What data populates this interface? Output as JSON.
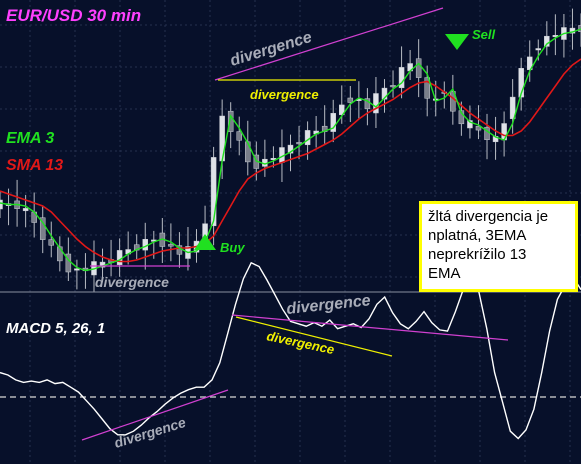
{
  "title": "EUR/USD  30 min",
  "indicators": {
    "ema": "EMA 3",
    "sma": "SMA 13",
    "macd": "MACD  5, 26, 1"
  },
  "colors": {
    "background": "#07102a",
    "grid": "#26304f",
    "ema": "#20e020",
    "sma": "#e01818",
    "candle": "#b8bcc4",
    "macd": "#ffffff",
    "divergence_magenta": "#d040d0",
    "divergence_yellow": "#f0f000",
    "signal_green": "#20e020",
    "title": "#ff40ff"
  },
  "annotations": {
    "divergence_labels": [
      "divergence",
      "divergence",
      "divergence",
      "divergence",
      "divergence",
      "divergence"
    ],
    "buy": "Buy",
    "sell": "Sell",
    "note": "žltá divergencia je\nnplatná, 3EMA\nneprekrížilo 13\n EMA"
  },
  "chart_data": [
    {
      "type": "line",
      "panel": "price",
      "title": "EUR/USD  30 min",
      "series": [
        {
          "name": "EMA 3",
          "color": "#20e020",
          "values": [
            2,
            1,
            1,
            0,
            -4,
            -11,
            -20,
            -28,
            -36,
            -41,
            -43,
            -42,
            -40,
            -38,
            -36,
            -32,
            -29,
            -27,
            -24,
            -22,
            -24,
            -28,
            -31,
            -30,
            -24,
            -10,
            30,
            60,
            52,
            42,
            30,
            28,
            30,
            33,
            36,
            40,
            44,
            48,
            50,
            52,
            60,
            68,
            72,
            70,
            66,
            72,
            78,
            82,
            90,
            95,
            88,
            70,
            72,
            78,
            62,
            56,
            54,
            50,
            46,
            44,
            55,
            75,
            90,
            100,
            108,
            112,
            115,
            116,
            118
          ]
        },
        {
          "name": "SMA 13",
          "color": "#e01818",
          "values": [
            10,
            8,
            6,
            4,
            2,
            0,
            -4,
            -10,
            -16,
            -22,
            -27,
            -31,
            -34,
            -36,
            -37,
            -37,
            -36,
            -34,
            -32,
            -30,
            -29,
            -28,
            -28,
            -27,
            -25,
            -20,
            -10,
            0,
            10,
            18,
            22,
            25,
            27,
            29,
            31,
            33,
            35,
            38,
            41,
            44,
            48,
            53,
            58,
            62,
            65,
            68,
            71,
            75,
            79,
            82,
            83,
            80,
            76,
            72,
            67,
            62,
            58,
            54,
            50,
            47,
            47,
            50,
            56,
            64,
            72,
            80,
            88,
            94,
            98
          ]
        }
      ]
    },
    {
      "type": "line",
      "panel": "indicator",
      "title": "MACD  5, 26, 1",
      "series": [
        {
          "name": "MACD  5, 26, 1",
          "color": "#ffffff",
          "values": [
            20,
            18,
            14,
            12,
            13,
            12,
            14,
            11,
            12,
            8,
            4,
            -3,
            -10,
            -18,
            -26,
            -31,
            -31,
            -28,
            -23,
            -17,
            -12,
            -6,
            -1,
            3,
            6,
            8,
            8,
            14,
            28,
            52,
            76,
            97,
            110,
            107,
            96,
            84,
            72,
            62,
            60,
            58,
            61,
            58,
            63,
            56,
            58,
            60,
            57,
            64,
            76,
            82,
            69,
            60,
            56,
            62,
            70,
            61,
            55,
            54,
            70,
            88,
            94,
            86,
            56,
            20,
            -4,
            -28,
            -34,
            -27,
            -10,
            20,
            54,
            80,
            92,
            98,
            88
          ]
        }
      ]
    }
  ]
}
